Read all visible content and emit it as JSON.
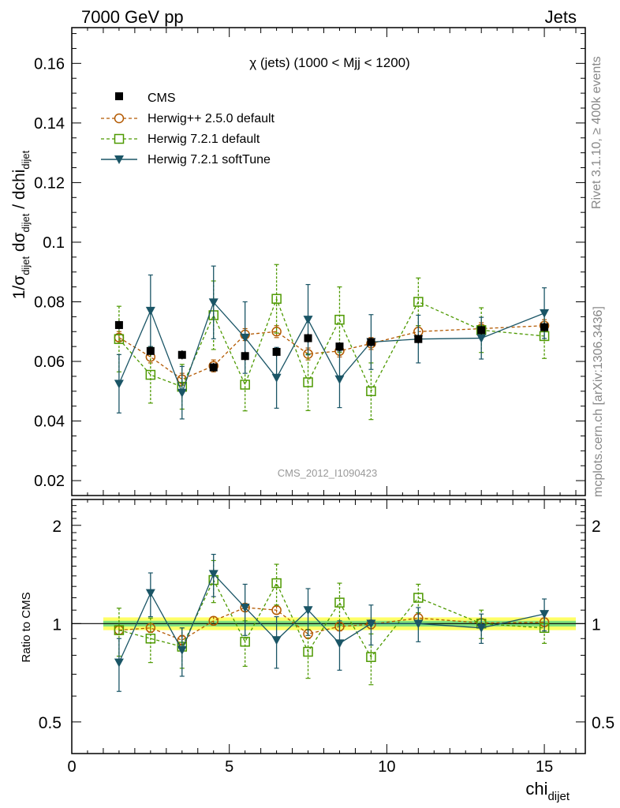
{
  "header": {
    "left": "7000 GeV pp",
    "right": "Jets"
  },
  "side_labels": {
    "rivet": "Rivet 3.1.10, ≥ 400k events",
    "mcplots": "mcplots.cern.ch [arXiv:1306.3436]"
  },
  "colors": {
    "cms": "#000000",
    "herwigpp": "#b35900",
    "herwig721": "#4d9900",
    "softtune": "#1a5566",
    "band_inner": "#7fe07f",
    "band_outer": "#ffff66"
  },
  "chart_data": {
    "type": "scatter",
    "title": "χ (jets) (1000 < Mjj < 1200)",
    "watermark": "CMS_2012_I1090423",
    "xlabel": {
      "main": "chi",
      "sub": "dijet"
    },
    "ylabel": {
      "text": "1/σ_dijet dσ_dijet / dchi_dijet"
    },
    "xlim": [
      0,
      16.3
    ],
    "ylim": [
      0.015,
      0.172
    ],
    "xticks": [
      0,
      5,
      10,
      15
    ],
    "yticks": [
      0.02,
      0.04,
      0.06,
      0.08,
      0.1,
      0.12,
      0.14,
      0.16
    ],
    "ytick_labels": [
      "0.02",
      "0.04",
      "0.06",
      "0.08",
      "0.1",
      "0.12",
      "0.14",
      "0.16"
    ],
    "x": [
      1.5,
      2.5,
      3.5,
      4.5,
      5.5,
      6.5,
      7.5,
      8.5,
      9.5,
      11,
      13,
      15
    ],
    "cms_bins": [
      [
        1,
        2
      ],
      [
        2,
        3
      ],
      [
        3,
        4
      ],
      [
        4,
        5
      ],
      [
        5,
        6
      ],
      [
        6,
        7
      ],
      [
        7,
        8
      ],
      [
        8,
        9
      ],
      [
        9,
        10
      ],
      [
        10,
        12
      ],
      [
        12,
        14
      ],
      [
        14,
        16
      ]
    ],
    "series": [
      {
        "name": "CMS",
        "style": "data",
        "values": [
          0.0722,
          0.0635,
          0.0622,
          0.058,
          0.0618,
          0.0632,
          0.0678,
          0.065,
          0.0665,
          0.0675,
          0.0705,
          0.0715
        ],
        "errors": [
          0.0015,
          0.0015,
          0.0015,
          0.0015,
          0.0015,
          0.0015,
          0.0015,
          0.0015,
          0.0015,
          0.0015,
          0.0015,
          0.0015
        ]
      },
      {
        "name": "Herwig++ 2.5.0 default",
        "style": "herwigpp",
        "values": [
          0.068,
          0.0615,
          0.054,
          0.0585,
          0.069,
          0.07,
          0.0625,
          0.0635,
          0.066,
          0.07,
          0.071,
          0.072
        ],
        "errors": [
          0.002,
          0.002,
          0.002,
          0.002,
          0.002,
          0.002,
          0.002,
          0.002,
          0.002,
          0.002,
          0.002,
          0.002
        ]
      },
      {
        "name": "Herwig 7.2.1 default",
        "style": "herwig721",
        "values": [
          0.0675,
          0.0555,
          0.0515,
          0.0755,
          0.0522,
          0.081,
          0.053,
          0.074,
          0.05,
          0.08,
          0.0705,
          0.0685
        ],
        "errors": [
          0.011,
          0.0095,
          0.0075,
          0.0115,
          0.0088,
          0.0115,
          0.0095,
          0.011,
          0.0095,
          0.008,
          0.0075,
          0.0075
        ]
      },
      {
        "name": "Herwig 7.2.1 softTune",
        "style": "softtune",
        "values": [
          0.0525,
          0.077,
          0.0495,
          0.0798,
          0.068,
          0.0545,
          0.074,
          0.054,
          0.0665,
          0.0675,
          0.0678,
          0.0762
        ],
        "errors": [
          0.0098,
          0.012,
          0.0088,
          0.0122,
          0.012,
          0.0102,
          0.0118,
          0.0095,
          0.0092,
          0.008,
          0.007,
          0.0085
        ]
      }
    ],
    "ratio": {
      "ylabel": "Ratio to CMS",
      "ylim": [
        0.4,
        2.4
      ],
      "yticks": [
        0.5,
        1,
        2
      ],
      "ytick_labels": [
        "0.5",
        "1",
        "2"
      ],
      "band_inner": 0.02,
      "band_outer": 0.045,
      "series": [
        {
          "name": "Herwig++ 2.5.0 default",
          "style": "herwigpp",
          "values": [
            0.955,
            0.97,
            0.89,
            1.02,
            1.12,
            1.1,
            0.93,
            0.98,
            0.995,
            1.04,
            1.005,
            1.01
          ],
          "errors": [
            0.03,
            0.03,
            0.03,
            0.03,
            0.03,
            0.03,
            0.03,
            0.03,
            0.03,
            0.03,
            0.03,
            0.03
          ]
        },
        {
          "name": "Herwig 7.2.1 default",
          "style": "herwig721",
          "values": [
            0.955,
            0.9,
            0.85,
            1.36,
            0.88,
            1.33,
            0.82,
            1.16,
            0.79,
            1.2,
            1.0,
            0.97
          ],
          "errors": [
            0.16,
            0.14,
            0.12,
            0.2,
            0.14,
            0.19,
            0.14,
            0.17,
            0.14,
            0.12,
            0.1,
            0.1
          ]
        },
        {
          "name": "Herwig 7.2.1 softTune",
          "style": "softtune",
          "values": [
            0.76,
            1.24,
            0.83,
            1.42,
            1.12,
            0.89,
            1.1,
            0.87,
            1.0,
            1.0,
            0.97,
            1.07
          ],
          "errors": [
            0.14,
            0.19,
            0.14,
            0.21,
            0.2,
            0.16,
            0.18,
            0.15,
            0.14,
            0.12,
            0.1,
            0.12
          ]
        }
      ]
    }
  }
}
